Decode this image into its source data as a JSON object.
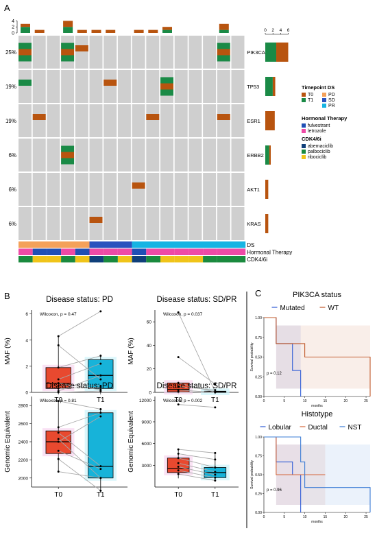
{
  "panel_labels": [
    "A",
    "B",
    "C"
  ],
  "oncoprint": {
    "genes": [
      "PIK3CA",
      "TP53",
      "ESR1",
      "ERBB2",
      "AKT1",
      "KRAS"
    ],
    "percents": [
      "25%",
      "19%",
      "19%",
      "6%",
      "6%",
      "6%"
    ],
    "top_axis_ticks": [
      "0",
      "2",
      "4"
    ],
    "right_axis_ticks": [
      "0",
      "2",
      "4",
      "6"
    ],
    "track_labels": [
      "DS",
      "Hormonal Therapy",
      "CDK4/6i"
    ],
    "legend": {
      "timepoint_title": "Timepoint DS",
      "timepoint": [
        {
          "label": "T0",
          "color": "#b8540f"
        },
        {
          "label": "T1",
          "color": "#1a8a46"
        },
        {
          "label": "PD",
          "color": "#f4a15a"
        },
        {
          "label": "SD",
          "color": "#2a52be"
        },
        {
          "label": "PR",
          "color": "#16b4e3"
        }
      ],
      "hormonal_title": "Hormonal Therapy",
      "hormonal": [
        {
          "label": "fulvestrant",
          "color": "#1f4fb5"
        },
        {
          "label": "letrozole",
          "color": "#ee4aa6"
        }
      ],
      "cdk_title": "CDK4/6i",
      "cdk": [
        {
          "label": "abemaciclib",
          "color": "#0f3f7a"
        },
        {
          "label": "palbociclib",
          "color": "#1a8a3e"
        },
        {
          "label": "ribociclib",
          "color": "#f0c419"
        }
      ]
    }
  },
  "chart_data": [
    {
      "type": "oncoprint",
      "genes": [
        "PIK3CA",
        "TP53",
        "ESR1",
        "ERBB2",
        "AKT1",
        "KRAS"
      ],
      "frequency_percent": [
        25,
        19,
        19,
        6,
        6,
        6
      ],
      "samples": 16,
      "mutations": [
        {
          "gene": "PIK3CA",
          "sample": 1,
          "timepoints": [
            "T1",
            "T0",
            "T1"
          ]
        },
        {
          "gene": "PIK3CA",
          "sample": 4,
          "timepoints": [
            "T1",
            "T0",
            "T1"
          ]
        },
        {
          "gene": "PIK3CA",
          "sample": 5,
          "timepoints": [
            "T0"
          ]
        },
        {
          "gene": "PIK3CA",
          "sample": 15,
          "timepoints": [
            "T1",
            "T0",
            "T1"
          ]
        },
        {
          "gene": "TP53",
          "sample": 1,
          "timepoints": [
            "T1"
          ]
        },
        {
          "gene": "TP53",
          "sample": 7,
          "timepoints": [
            "T0"
          ]
        },
        {
          "gene": "TP53",
          "sample": 11,
          "timepoints": [
            "T1",
            "T0",
            "T1"
          ]
        },
        {
          "gene": "ESR1",
          "sample": 2,
          "timepoints": [
            "T0"
          ]
        },
        {
          "gene": "ESR1",
          "sample": 10,
          "timepoints": [
            "T0"
          ]
        },
        {
          "gene": "ESR1",
          "sample": 15,
          "timepoints": [
            "T0"
          ]
        },
        {
          "gene": "ERBB2",
          "sample": 4,
          "timepoints": [
            "T1",
            "T0",
            "T1"
          ]
        },
        {
          "gene": "AKT1",
          "sample": 9,
          "timepoints": [
            "T0"
          ]
        },
        {
          "gene": "KRAS",
          "sample": 6,
          "timepoints": [
            "T0"
          ]
        }
      ],
      "top_bars": [
        {
          "sample": 1,
          "T1": 2,
          "T0": 1
        },
        {
          "sample": 2,
          "T1": 0,
          "T0": 1
        },
        {
          "sample": 4,
          "T1": 2,
          "T0": 2
        },
        {
          "sample": 5,
          "T1": 0,
          "T0": 1
        },
        {
          "sample": 6,
          "T1": 0,
          "T0": 1
        },
        {
          "sample": 7,
          "T1": 0,
          "T0": 1
        },
        {
          "sample": 9,
          "T1": 0,
          "T0": 1
        },
        {
          "sample": 10,
          "T1": 0,
          "T0": 1
        },
        {
          "sample": 11,
          "T1": 1,
          "T0": 1
        },
        {
          "sample": 15,
          "T1": 1,
          "T0": 2
        }
      ],
      "right_bars": [
        {
          "gene": "PIK3CA",
          "T1": 2.2,
          "T0": 2.4
        },
        {
          "gene": "TP53",
          "T1": 1.5,
          "T0": 0.5
        },
        {
          "gene": "ESR1",
          "T1": 0,
          "T0": 1.9
        },
        {
          "gene": "ERBB2",
          "T1": 0.8,
          "T0": 0.3
        },
        {
          "gene": "AKT1",
          "T1": 0,
          "T0": 0.6
        },
        {
          "gene": "KRAS",
          "T1": 0,
          "T0": 0.6
        }
      ],
      "ds_track": [
        {
          "from": 1,
          "to": 5,
          "value": "PD"
        },
        {
          "from": 6,
          "to": 8,
          "value": "SD"
        },
        {
          "from": 9,
          "to": 16,
          "value": "PR"
        }
      ],
      "hormonal_track": [
        "letrozole",
        "fulvestrant",
        "fulvestrant",
        "letrozole",
        "fulvestrant",
        "letrozole",
        "letrozole",
        "letrozole",
        "fulvestrant",
        "letrozole",
        "letrozole",
        "letrozole",
        "letrozole",
        "letrozole",
        "letrozole",
        "letrozole"
      ],
      "cdk_track": [
        "palbociclib",
        "ribociclib",
        "ribociclib",
        "palbociclib",
        "ribociclib",
        "abemaciclib",
        "palbociclib",
        "ribociclib",
        "abemaciclib",
        "palbociclib",
        "ribociclib",
        "ribociclib",
        "ribociclib",
        "palbociclib",
        "palbociclib",
        "palbociclib"
      ]
    },
    {
      "type": "box",
      "title": "Disease status: PD",
      "ylabel": "MAF (%)",
      "categories": [
        "T0",
        "T1"
      ],
      "ylim": [
        0,
        6.3
      ],
      "yticks": [
        "0",
        "2",
        "4",
        "6"
      ],
      "annotation": "Wilcoxon, p = 0.47",
      "boxes": [
        {
          "q1": 0.3,
          "median": 0.7,
          "q3": 1.9,
          "whisker_low": 0.0,
          "whisker_high": 4.3,
          "color": "#e8492f"
        },
        {
          "q1": 0.3,
          "median": 1.3,
          "q3": 2.5,
          "whisker_low": 0.0,
          "whisker_high": 2.9,
          "color": "#17b3d9"
        }
      ],
      "pairs": [
        [
          4.3,
          6.2
        ],
        [
          3.6,
          1.0
        ],
        [
          1.9,
          2.8
        ],
        [
          1.0,
          2.2
        ],
        [
          0.7,
          0.2
        ],
        [
          0.5,
          0.5
        ],
        [
          0.3,
          0.4
        ],
        [
          0.1,
          1.3
        ],
        [
          0.0,
          0.1
        ]
      ]
    },
    {
      "type": "box",
      "title": "Disease status: SD/PR",
      "ylabel": "MAF (%)",
      "categories": [
        "T0",
        "T1"
      ],
      "ylim": [
        0,
        70
      ],
      "yticks": [
        "0",
        "20",
        "40",
        "60"
      ],
      "annotation": "Wilcoxon, p = 0.037",
      "boxes": [
        {
          "q1": 0.5,
          "median": 2.5,
          "q3": 8.0,
          "whisker_low": 0.0,
          "whisker_high": 9.0,
          "color": "#e8492f"
        },
        {
          "q1": 0.0,
          "median": 0.5,
          "q3": 1.0,
          "whisker_low": 0.0,
          "whisker_high": 2.0,
          "color": "#17b3d9"
        }
      ],
      "pairs": [
        [
          68,
          0.5
        ],
        [
          30,
          7
        ],
        [
          8,
          0.3
        ],
        [
          5,
          2
        ],
        [
          2,
          0
        ],
        [
          0.5,
          0
        ]
      ]
    },
    {
      "type": "box",
      "title": "Disease status: PD",
      "ylabel": "Genomic Equivalent",
      "categories": [
        "T0",
        "T1"
      ],
      "ylim": [
        1900,
        2900
      ],
      "yticks": [
        "2000",
        "2200",
        "2400",
        "2600",
        "2800"
      ],
      "annotation": "Wilcoxon, p = 0.81",
      "boxes": [
        {
          "q1": 2270,
          "median": 2400,
          "q3": 2520,
          "whisker_low": 2070,
          "whisker_high": 2850,
          "color": "#e8492f"
        },
        {
          "q1": 2000,
          "median": 2130,
          "q3": 2720,
          "whisker_low": 1840,
          "whisker_high": 2760,
          "color": "#17b3d9"
        }
      ],
      "pairs": [
        [
          2850,
          2760
        ],
        [
          2560,
          2720
        ],
        [
          2500,
          2130
        ],
        [
          2430,
          2000
        ],
        [
          2400,
          2680
        ],
        [
          2300,
          2100
        ],
        [
          2210,
          1860
        ],
        [
          2070,
          2000
        ]
      ]
    },
    {
      "type": "box",
      "title": "Disease status: SD/PR",
      "ylabel": "Genomic Equivalent",
      "categories": [
        "T0",
        "T1"
      ],
      "ylim": [
        0,
        12500
      ],
      "yticks": [
        "3000",
        "6000",
        "9000",
        "12000"
      ],
      "annotation": "Wilcoxon, p = 0.002",
      "boxes": [
        {
          "q1": 2000,
          "median": 2600,
          "q3": 4000,
          "whisker_low": 1200,
          "whisker_high": 5200,
          "color": "#e8492f"
        },
        {
          "q1": 1300,
          "median": 2000,
          "q3": 2700,
          "whisker_low": 800,
          "whisker_high": 4700,
          "color": "#17b3d9"
        }
      ],
      "pairs": [
        [
          11400,
          11000
        ],
        [
          5200,
          4700
        ],
        [
          4600,
          3800
        ],
        [
          4000,
          2700
        ],
        [
          3300,
          2100
        ],
        [
          2800,
          1700
        ],
        [
          2300,
          1300
        ],
        [
          1800,
          900
        ]
      ]
    },
    {
      "type": "line",
      "subtype": "kaplan-meier",
      "title": "PIK3CA status",
      "xlabel": "months",
      "ylabel": "Survival probability",
      "xlim": [
        0,
        26
      ],
      "ylim": [
        0,
        1
      ],
      "xticks": [
        "0",
        "5",
        "10",
        "15",
        "20",
        "25"
      ],
      "yticks": [
        "0.00",
        "0.25",
        "0.50",
        "0.75",
        "1.00"
      ],
      "annotation": "p = 0.12",
      "series": [
        {
          "name": "Mutated",
          "color": "#2e5bd6",
          "steps": [
            [
              0,
              1.0
            ],
            [
              3,
              0.67
            ],
            [
              7,
              0.33
            ],
            [
              9,
              0.0
            ]
          ]
        },
        {
          "name": "WT",
          "color": "#c0582a",
          "steps": [
            [
              0,
              1.0
            ],
            [
              3,
              0.67
            ],
            [
              10,
              0.5
            ],
            [
              26,
              0.0
            ]
          ]
        }
      ]
    },
    {
      "type": "line",
      "subtype": "kaplan-meier",
      "title": "Histotype",
      "xlabel": "months",
      "ylabel": "Survival probability",
      "xlim": [
        0,
        26
      ],
      "ylim": [
        0,
        1
      ],
      "xticks": [
        "0",
        "5",
        "10",
        "15",
        "20",
        "25"
      ],
      "yticks": [
        "0.00",
        "0.25",
        "0.50",
        "0.75",
        "1.00"
      ],
      "annotation": "p = 0.96",
      "series": [
        {
          "name": "Lobular",
          "color": "#2e5bd6",
          "steps": [
            [
              0,
              1.0
            ],
            [
              3,
              0.67
            ],
            [
              7,
              0.5
            ],
            [
              9,
              0.0
            ]
          ]
        },
        {
          "name": "Ductal",
          "color": "#d4663a",
          "steps": [
            [
              0,
              1.0
            ],
            [
              3,
              0.5
            ],
            [
              15,
              0.5
            ]
          ]
        },
        {
          "name": "NST",
          "color": "#3a7bd5",
          "steps": [
            [
              0,
              1.0
            ],
            [
              9,
              0.67
            ],
            [
              10,
              0.33
            ],
            [
              26,
              0.0
            ]
          ]
        }
      ]
    }
  ]
}
